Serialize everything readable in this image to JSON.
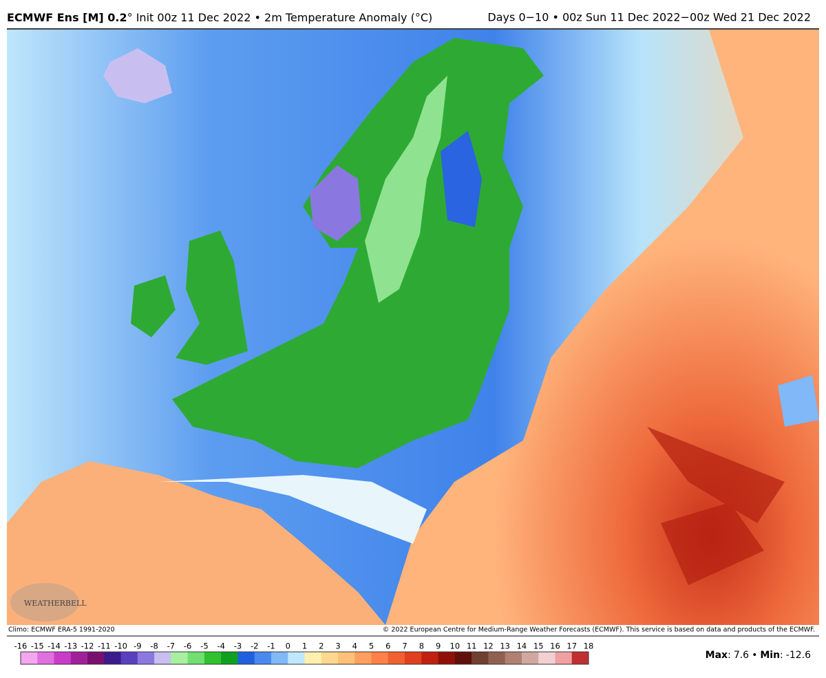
{
  "header": {
    "title_bold": "ECMWF Ens [M] 0.2",
    "title_rest": "° Init 00z 11 Dec 2022 • 2m Temperature Anomaly (°C)",
    "period": "Days 0−10 • 00z Sun 11 Dec 2022−00z Wed 21 Dec 2022"
  },
  "watermark": "WEATHERBELL",
  "footer": {
    "climo": "Climo: ECMWF ERA-5 1991-2020",
    "copyright": "© 2022 European Centre for Medium-Range Weather Forecasts (ECMWF). This service is based on data and products of the ECMWF."
  },
  "colorbar": {
    "ticks": [
      -16,
      -15,
      -14,
      -13,
      -12,
      -11,
      -10,
      -9,
      -8,
      -7,
      -6,
      -5,
      -4,
      -3,
      -2,
      -1,
      0,
      1,
      2,
      3,
      4,
      5,
      6,
      7,
      8,
      9,
      10,
      11,
      12,
      13,
      14,
      15,
      16,
      17,
      18
    ],
    "colors": [
      "#f4a6f0",
      "#e070e0",
      "#c83cc8",
      "#a0209a",
      "#78106e",
      "#3a1a8c",
      "#5a40c0",
      "#8a78e0",
      "#c8bff0",
      "#a8f0a0",
      "#70e070",
      "#30c030",
      "#10a020",
      "#2060e0",
      "#4a8af0",
      "#80b8f8",
      "#c0e8fc",
      "#fff0b0",
      "#ffd890",
      "#ffc078",
      "#ffa060",
      "#ff8048",
      "#f06030",
      "#e04020",
      "#c02010",
      "#901008",
      "#601008",
      "#704030",
      "#906050",
      "#b08070",
      "#d0a8a0",
      "#f0d0d0",
      "#f0a0a0",
      "#c03030"
    ]
  },
  "stats": {
    "max_label": "Max",
    "max": 7.6,
    "separator": "•",
    "min_label": "Min",
    "min": -12.6,
    "colon": ":"
  }
}
